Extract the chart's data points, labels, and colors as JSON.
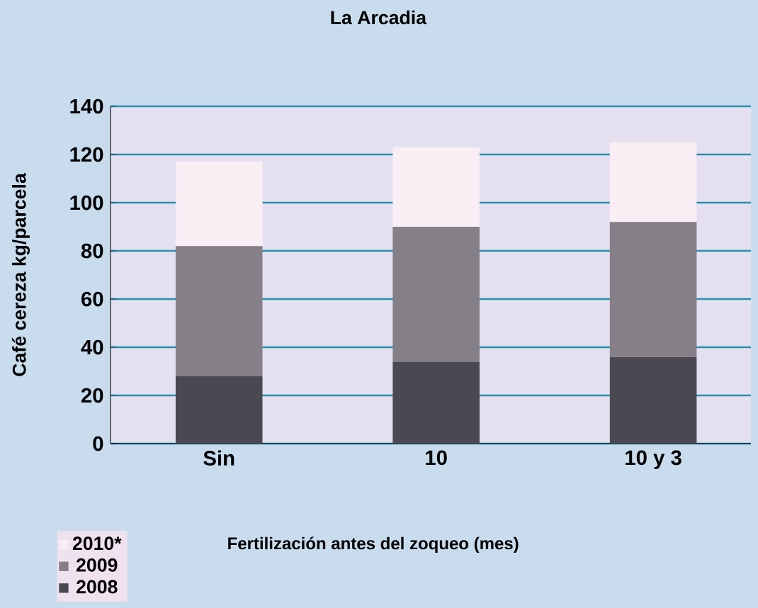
{
  "chart_data": {
    "type": "bar",
    "title": "La Arcadia",
    "xlabel": "Fertilización antes del zoqueo (mes)",
    "ylabel": "Café cereza kg/parcela",
    "categories": [
      "Sin",
      "10",
      "10 y 3"
    ],
    "stacked": true,
    "series": [
      {
        "name": "2008",
        "color": "#4a4850",
        "values": [
          28,
          34,
          36
        ]
      },
      {
        "name": "2009",
        "color": "#858088",
        "values": [
          54,
          56,
          56
        ]
      },
      {
        "name": "2010*",
        "color": "#f8eef4",
        "values": [
          35,
          33,
          33
        ]
      }
    ],
    "ylim": [
      0,
      140
    ],
    "yticks": [
      0,
      20,
      40,
      60,
      80,
      100,
      120,
      140
    ],
    "grid": "y",
    "legend": "bottom left"
  }
}
